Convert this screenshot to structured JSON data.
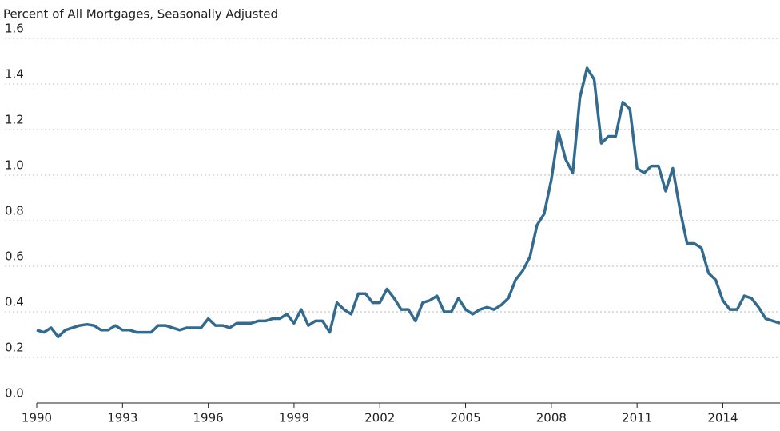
{
  "chart_data": {
    "type": "line",
    "y_label": "Percent of All Mortgages, Seasonally Adjusted",
    "x": [
      1990,
      1990.25,
      1990.5,
      1990.75,
      1991,
      1991.25,
      1991.5,
      1991.75,
      1992,
      1992.25,
      1992.5,
      1992.75,
      1993,
      1993.25,
      1993.5,
      1993.75,
      1994,
      1994.25,
      1994.5,
      1994.75,
      1995,
      1995.25,
      1995.5,
      1995.75,
      1996,
      1996.25,
      1996.5,
      1996.75,
      1997,
      1997.25,
      1997.5,
      1997.75,
      1998,
      1998.25,
      1998.5,
      1998.75,
      1999,
      1999.25,
      1999.5,
      1999.75,
      2000,
      2000.25,
      2000.5,
      2000.75,
      2001,
      2001.25,
      2001.5,
      2001.75,
      2002,
      2002.25,
      2002.5,
      2002.75,
      2003,
      2003.25,
      2003.5,
      2003.75,
      2004,
      2004.25,
      2004.5,
      2004.75,
      2005,
      2005.25,
      2005.5,
      2005.75,
      2006,
      2006.25,
      2006.5,
      2006.75,
      2007,
      2007.25,
      2007.5,
      2007.75,
      2008,
      2008.25,
      2008.5,
      2008.75,
      2009,
      2009.25,
      2009.5,
      2009.75,
      2010,
      2010.25,
      2010.5,
      2010.75,
      2011,
      2011.25,
      2011.5,
      2011.75,
      2012,
      2012.25,
      2012.5,
      2012.75,
      2013,
      2013.25,
      2013.5,
      2013.75,
      2014,
      2014.25,
      2014.5,
      2014.75,
      2015,
      2015.25,
      2015.5,
      2015.75,
      2016
    ],
    "series": [
      {
        "name": "Percent of All Mortgages",
        "color": "#336b8f",
        "values": [
          0.32,
          0.31,
          0.33,
          0.29,
          0.32,
          0.33,
          0.34,
          0.345,
          0.34,
          0.32,
          0.32,
          0.34,
          0.32,
          0.32,
          0.31,
          0.31,
          0.31,
          0.34,
          0.34,
          0.33,
          0.32,
          0.33,
          0.33,
          0.33,
          0.37,
          0.34,
          0.34,
          0.33,
          0.35,
          0.35,
          0.35,
          0.36,
          0.36,
          0.37,
          0.37,
          0.39,
          0.35,
          0.41,
          0.34,
          0.36,
          0.36,
          0.31,
          0.44,
          0.41,
          0.39,
          0.48,
          0.48,
          0.44,
          0.44,
          0.5,
          0.46,
          0.41,
          0.41,
          0.36,
          0.44,
          0.45,
          0.47,
          0.4,
          0.4,
          0.46,
          0.41,
          0.39,
          0.41,
          0.42,
          0.41,
          0.43,
          0.46,
          0.54,
          0.58,
          0.64,
          0.78,
          0.83,
          0.98,
          1.19,
          1.07,
          1.01,
          1.34,
          1.47,
          1.42,
          1.14,
          1.17,
          1.17,
          1.32,
          1.29,
          1.03,
          1.01,
          1.04,
          1.04,
          0.93,
          1.03,
          0.85,
          0.7,
          0.7,
          0.68,
          0.57,
          0.54,
          0.45,
          0.41,
          0.41,
          0.47,
          0.46,
          0.42,
          0.37,
          0.36,
          0.35
        ]
      }
    ],
    "xlim": [
      1990,
      2016
    ],
    "xticks": [
      1990,
      1993,
      1996,
      1999,
      2002,
      2005,
      2008,
      2011,
      2014
    ],
    "ylim": [
      0,
      1.6
    ],
    "yticks": [
      {
        "value": 0,
        "label": "0.0"
      },
      0.2,
      0.4,
      0.6,
      0.8,
      {
        "value": 1,
        "label": "1.0"
      },
      1.2,
      1.4,
      1.6
    ],
    "grid": true
  }
}
